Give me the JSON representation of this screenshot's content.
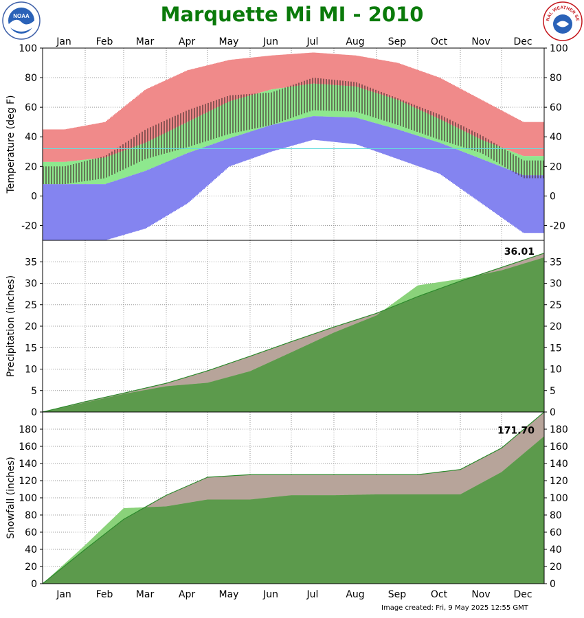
{
  "title": "Marquette Mi MI - 2010",
  "footer": "Image created: Fri, 9 May 2025 12:55 GMT",
  "logos": {
    "left": "nora-logo",
    "left_text": "NOAA",
    "right": "nws-logo",
    "right_text": "NATIONAL WEATHER SERVICE"
  },
  "colors": {
    "title": "#0a7a0a",
    "record_range": "#f08a8a",
    "normal_range": "#8ee88e",
    "record_low": "#8484f0",
    "observed_bar": "#4a3030",
    "freezing_line": "#66dddd",
    "precip_normal": "#b7a49a",
    "precip_observed": "#5c9a4c",
    "precip_above": "#8ad27a",
    "normal_line": "#2d8a2d"
  },
  "months": [
    "Jan",
    "Feb",
    "Mar",
    "Apr",
    "May",
    "Jun",
    "Jul",
    "Aug",
    "Sep",
    "Oct",
    "Nov",
    "Dec"
  ],
  "chart_data": [
    {
      "type": "bar",
      "name": "temperature",
      "ylabel": "Temperature (deg F)",
      "ylim": [
        -30,
        100
      ],
      "yticks": [
        -20,
        0,
        20,
        40,
        60,
        80,
        100
      ],
      "grid": true,
      "normal_high_by_month": [
        23,
        26,
        36,
        50,
        64,
        72,
        76,
        74,
        65,
        52,
        38,
        27
      ],
      "normal_low_by_month": [
        8,
        8,
        17,
        29,
        39,
        48,
        54,
        53,
        45,
        36,
        25,
        14
      ],
      "record_high_by_month": [
        45,
        50,
        72,
        85,
        92,
        95,
        97,
        95,
        90,
        80,
        65,
        50
      ],
      "record_low_by_month": [
        -30,
        -30,
        -22,
        -5,
        20,
        30,
        38,
        35,
        25,
        15,
        -5,
        -25
      ],
      "observed_high_by_month": [
        20,
        27,
        45,
        58,
        68,
        70,
        80,
        77,
        66,
        55,
        41,
        24
      ],
      "observed_low_by_month": [
        8,
        12,
        25,
        33,
        42,
        48,
        58,
        57,
        48,
        38,
        29,
        12
      ],
      "freezing_line": 32
    },
    {
      "type": "area",
      "name": "precipitation",
      "ylabel": "Precipitation (inches)",
      "ylim": [
        0,
        40
      ],
      "yticks": [
        0,
        5,
        10,
        15,
        20,
        25,
        30,
        35
      ],
      "grid": true,
      "label": "36.01",
      "normal_cumulative_end_of_month": [
        2.4,
        4.4,
        6.7,
        9.6,
        13.0,
        16.4,
        19.8,
        23.0,
        26.9,
        30.5,
        33.7,
        37.0
      ],
      "observed_cumulative_end_of_month": [
        2.2,
        4.2,
        6.0,
        6.8,
        9.5,
        13.9,
        18.5,
        22.5,
        29.5,
        31.0,
        33.0,
        36.01
      ]
    },
    {
      "type": "area",
      "name": "snowfall",
      "ylabel": "Snowfall (inches)",
      "ylim": [
        0,
        200
      ],
      "yticks": [
        0,
        20,
        40,
        60,
        80,
        100,
        120,
        140,
        160,
        180
      ],
      "grid": true,
      "label": "171.70",
      "normal_cumulative_end_of_month": [
        40,
        75,
        103,
        124,
        127,
        127,
        127,
        127,
        127,
        133,
        158,
        200
      ],
      "observed_cumulative_end_of_month": [
        45,
        88,
        90,
        98,
        98,
        103,
        103,
        104,
        104,
        104,
        130,
        171.7
      ]
    }
  ]
}
